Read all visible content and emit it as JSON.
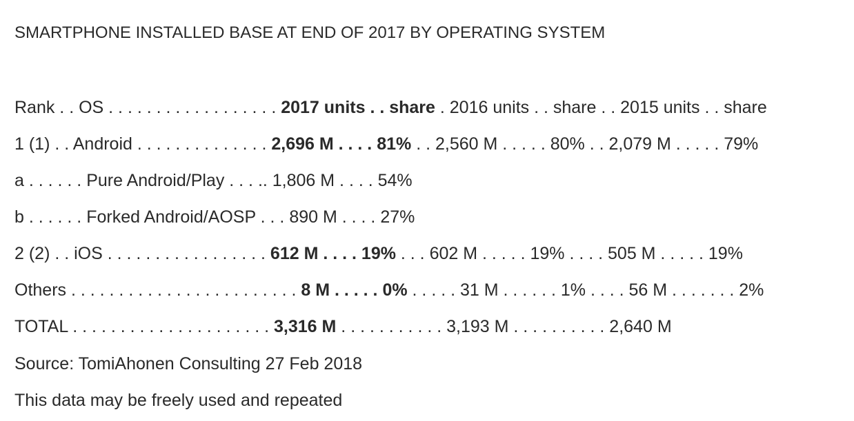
{
  "title": "SMARTPHONE INSTALLED BASE AT END OF 2017 BY OPERATING SYSTEM",
  "rows": {
    "header": {
      "lead": "Rank . . OS . . . . . . . . . . . . . . . . . . ",
      "bold": "2017 units . . share",
      "tail": " . 2016 units . . share . . 2015 units . . share"
    },
    "android": {
      "lead": "1 (1) . .  Android  . . . . . . . . . . . . . . ",
      "bold": "2,696 M . . . . 81%",
      "tail": " . . 2,560 M . . . . . 80% . . 2,079 M . . . . . 79%"
    },
    "pure": {
      "text": "a . . . . . . Pure Android/Play . . . ..  1,806 M . . . . 54%"
    },
    "forked": {
      "text": "b . . . . . . Forked Android/AOSP . . . 890 M . . . . 27%"
    },
    "ios": {
      "lead": "2 (2) . .  iOS  . . . . . . . . . . . . . . . . . ",
      "bold": "612 M . . . . 19%",
      "tail": "  . . . 602 M . . . . . 19% . . . . 505 M . . . . . 19%"
    },
    "others": {
      "lead": "Others . . . . . . . . . . . . . . . . . . . . . . . . ",
      "bold": "8 M . . . . . 0%",
      "tail": " . . . . . 31 M . . . . . . 1% . . . . 56 M . . . . . . . 2%"
    },
    "total": {
      "lead": "TOTAL . . . . . . . . . . . . . . . . . . . . . ",
      "bold": "3,316 M",
      "tail": " . . . . . . . . . . . 3,193 M  . . . . . . . . . . 2,640 M"
    },
    "source": {
      "text": "Source: TomiAhonen Consulting 27 Feb 2018"
    },
    "note": {
      "text": "This data may be freely used and repeated"
    }
  }
}
